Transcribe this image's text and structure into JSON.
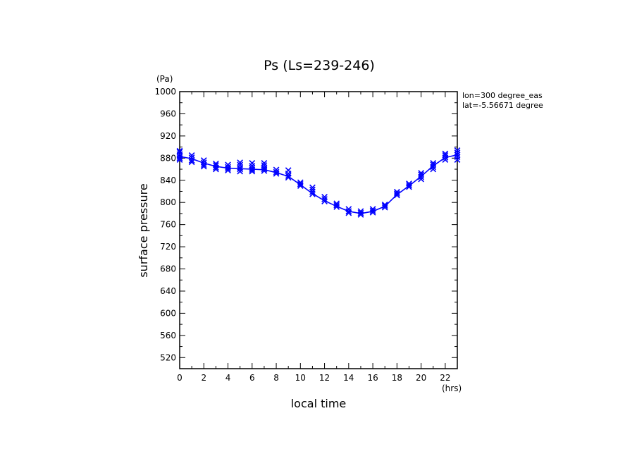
{
  "chart_data": {
    "type": "line",
    "title": "Ps (Ls=239-246)",
    "xlabel": "local time",
    "ylabel": "surface pressure",
    "x_unit": "(hrs)",
    "y_unit": "(Pa)",
    "annotations": [
      "lon=300 degree_eas",
      "lat=-5.56671 degree"
    ],
    "xlim": [
      0,
      23
    ],
    "ylim": [
      500,
      1000
    ],
    "x_ticks": [
      0,
      2,
      4,
      6,
      8,
      10,
      12,
      14,
      16,
      18,
      20,
      22
    ],
    "y_ticks": [
      520,
      560,
      600,
      640,
      680,
      720,
      760,
      800,
      840,
      880,
      920,
      960,
      1000
    ],
    "grid": false,
    "color": "#0000ff",
    "series": [
      {
        "x": [
          0,
          1,
          2,
          3,
          4,
          5,
          6,
          7,
          8,
          9,
          10,
          11,
          12,
          13,
          14,
          15,
          16,
          17,
          18,
          19,
          20,
          21,
          22,
          23
        ],
        "values": [
          883,
          879,
          871,
          865,
          862,
          861,
          860,
          859,
          854,
          847,
          832,
          816,
          803,
          793,
          784,
          780,
          784,
          793,
          814,
          830,
          847,
          866,
          881,
          886
        ]
      }
    ],
    "scatter": {
      "x": [
        0,
        0,
        0,
        0,
        0,
        0,
        1,
        1,
        1,
        1,
        2,
        2,
        2,
        2,
        3,
        3,
        3,
        3,
        4,
        4,
        4,
        4,
        5,
        5,
        5,
        5,
        5,
        6,
        6,
        6,
        6,
        6,
        7,
        7,
        7,
        7,
        7,
        8,
        8,
        8,
        9,
        9,
        9,
        9,
        10,
        10,
        10,
        11,
        11,
        11,
        11,
        12,
        12,
        12,
        13,
        13,
        13,
        14,
        14,
        14,
        15,
        15,
        15,
        16,
        16,
        16,
        17,
        17,
        17,
        18,
        18,
        18,
        19,
        19,
        19,
        20,
        20,
        20,
        20,
        21,
        21,
        21,
        21,
        22,
        22,
        22,
        22,
        23,
        23,
        23,
        23,
        23
      ],
      "y": [
        877,
        880,
        883,
        887,
        891,
        893,
        873,
        876,
        881,
        885,
        865,
        868,
        872,
        876,
        860,
        863,
        867,
        870,
        858,
        861,
        864,
        868,
        856,
        860,
        863,
        868,
        872,
        856,
        859,
        862,
        866,
        871,
        857,
        860,
        863,
        867,
        871,
        852,
        855,
        859,
        845,
        848,
        852,
        858,
        830,
        833,
        836,
        815,
        819,
        823,
        827,
        802,
        806,
        810,
        792,
        795,
        798,
        781,
        784,
        788,
        778,
        781,
        784,
        782,
        785,
        788,
        791,
        794,
        796,
        813,
        816,
        819,
        828,
        831,
        834,
        842,
        846,
        850,
        853,
        860,
        864,
        868,
        871,
        877,
        881,
        885,
        888,
        877,
        882,
        886,
        890,
        894
      ]
    }
  }
}
